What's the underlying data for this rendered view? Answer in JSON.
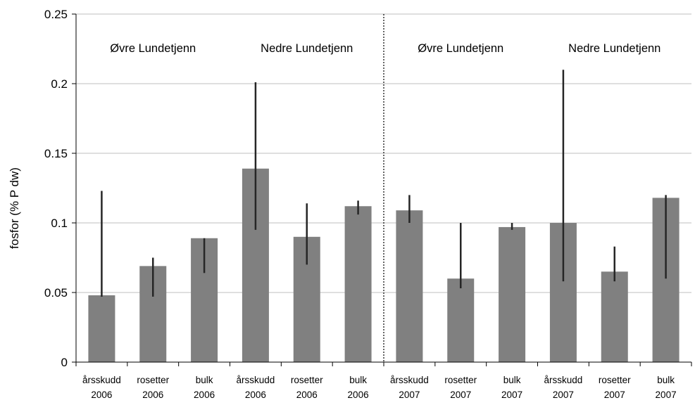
{
  "chart_data": {
    "type": "bar",
    "ylabel": "fosfor (% P dw)",
    "ylim": [
      0,
      0.25
    ],
    "yticks": [
      0,
      0.05,
      0.1,
      0.15,
      0.2,
      0.25
    ],
    "ytick_labels": [
      "0",
      "0.05",
      "0.1",
      "0.15",
      "0.2",
      "0.25"
    ],
    "grid": "horizontal",
    "bar_color": "#808080",
    "categories": [
      [
        "årsskudd",
        "2006"
      ],
      [
        "rosetter",
        "2006"
      ],
      [
        "bulk",
        "2006"
      ],
      [
        "årsskudd",
        "2006"
      ],
      [
        "rosetter",
        "2006"
      ],
      [
        "bulk",
        "2006"
      ],
      [
        "årsskudd",
        "2007"
      ],
      [
        "rosetter",
        "2007"
      ],
      [
        "bulk",
        "2007"
      ],
      [
        "årsskudd",
        "2007"
      ],
      [
        "rosetter",
        "2007"
      ],
      [
        "bulk",
        "2007"
      ]
    ],
    "values": [
      0.048,
      0.069,
      0.089,
      0.139,
      0.09,
      0.112,
      0.109,
      0.06,
      0.097,
      0.1,
      0.065,
      0.118
    ],
    "error_low": [
      0.047,
      0.047,
      0.064,
      0.095,
      0.07,
      0.106,
      0.1,
      0.053,
      0.095,
      0.058,
      0.058,
      0.06
    ],
    "error_high": [
      0.123,
      0.075,
      0.089,
      0.201,
      0.114,
      0.116,
      0.12,
      0.1,
      0.1,
      0.21,
      0.083,
      0.12
    ],
    "group_labels": [
      {
        "text": "Øvre Lundetjenn",
        "start": 0,
        "end": 2
      },
      {
        "text": "Nedre Lundetjenn",
        "start": 3,
        "end": 5
      },
      {
        "text": "Øvre Lundetjenn",
        "start": 6,
        "end": 8
      },
      {
        "text": "Nedre Lundetjenn",
        "start": 9,
        "end": 11
      }
    ],
    "divider_after_index": 5
  }
}
